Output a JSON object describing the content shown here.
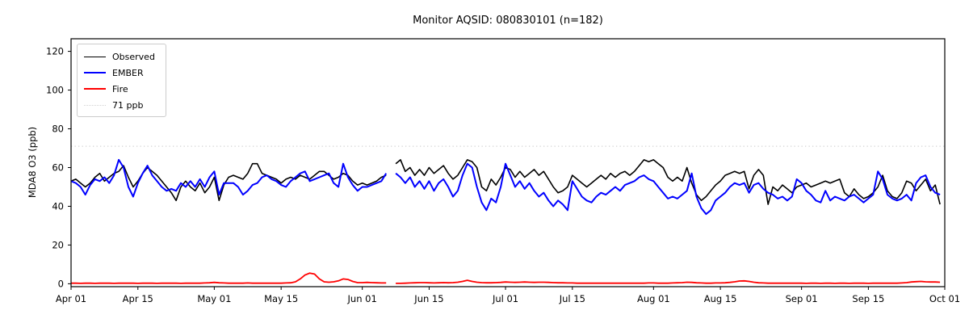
{
  "title": "Monitor AQSID: 080830101 (n=182)",
  "chart_data": {
    "type": "line",
    "title": "Monitor AQSID: 080830101 (n=182)",
    "xlabel": "",
    "ylabel": "MDA8 O3 (ppb)",
    "ylim": [
      -1.5,
      126.5
    ],
    "yticks": [
      0,
      20,
      40,
      60,
      80,
      100,
      120
    ],
    "x_range_days": [
      0,
      183
    ],
    "x_start_date": "Apr 01",
    "x_end_date": "Oct 01",
    "xticks": [
      {
        "day": 0,
        "label": "Apr 01"
      },
      {
        "day": 14,
        "label": "Apr 15"
      },
      {
        "day": 30,
        "label": "May 01"
      },
      {
        "day": 44,
        "label": "May 15"
      },
      {
        "day": 61,
        "label": "Jun 01"
      },
      {
        "day": 75,
        "label": "Jun 15"
      },
      {
        "day": 91,
        "label": "Jul 01"
      },
      {
        "day": 105,
        "label": "Jul 15"
      },
      {
        "day": 122,
        "label": "Aug 01"
      },
      {
        "day": 136,
        "label": "Aug 15"
      },
      {
        "day": 153,
        "label": "Sep 01"
      },
      {
        "day": 167,
        "label": "Sep 15"
      },
      {
        "day": 183,
        "label": "Oct 01"
      }
    ],
    "grid": false,
    "legend_position": "upper left",
    "missing_day_index": 67,
    "n_points": 182,
    "threshold": {
      "value": 71,
      "label": "71 ppb",
      "color": "#d3d3d3",
      "style": "dotted"
    },
    "colors": {
      "observed": "#000000",
      "ember": "#0000ff",
      "fire": "#ff0000",
      "axis": "#000000"
    },
    "series": [
      {
        "name": "Observed",
        "color": "#000000",
        "values": [
          53,
          54,
          52,
          50,
          52,
          55,
          57,
          53,
          55,
          57,
          58,
          61,
          55,
          50,
          53,
          57,
          60,
          58,
          56,
          53,
          50,
          47,
          43,
          50,
          53,
          50,
          48,
          52,
          47,
          50,
          55,
          43,
          51,
          55,
          56,
          55,
          54,
          57,
          62,
          62,
          57,
          56,
          55,
          54,
          52,
          54,
          55,
          54,
          56,
          55,
          54,
          56,
          58,
          58,
          56,
          54,
          55,
          57,
          56,
          53,
          51,
          52,
          51,
          52,
          53,
          55,
          56,
          null,
          62,
          64,
          58,
          60,
          56,
          59,
          56,
          60,
          57,
          59,
          61,
          57,
          54,
          56,
          60,
          64,
          63,
          60,
          50,
          48,
          54,
          51,
          55,
          60,
          59,
          55,
          58,
          55,
          57,
          59,
          56,
          58,
          54,
          50,
          47,
          48,
          50,
          56,
          54,
          52,
          50,
          52,
          54,
          56,
          54,
          57,
          55,
          57,
          58,
          56,
          58,
          61,
          64,
          63,
          64,
          62,
          60,
          55,
          53,
          55,
          53,
          60,
          52,
          46,
          43,
          45,
          48,
          51,
          53,
          56,
          57,
          58,
          57,
          58,
          49,
          56,
          59,
          56,
          41,
          50,
          48,
          51,
          49,
          47,
          50,
          51,
          52,
          50,
          51,
          52,
          53,
          52,
          53,
          54,
          47,
          45,
          49,
          46,
          44,
          45,
          47,
          50,
          56,
          48,
          45,
          44,
          47,
          53,
          52,
          48,
          51,
          54,
          48,
          51,
          41
        ]
      },
      {
        "name": "EMBER",
        "color": "#0000ff",
        "values": [
          53,
          52,
          50,
          46,
          51,
          54,
          53,
          55,
          52,
          56,
          64,
          60,
          50,
          45,
          52,
          57,
          61,
          56,
          53,
          50,
          48,
          49,
          48,
          52,
          50,
          53,
          50,
          54,
          50,
          55,
          58,
          46,
          52,
          52,
          52,
          50,
          46,
          48,
          51,
          52,
          55,
          56,
          54,
          53,
          51,
          50,
          53,
          55,
          57,
          58,
          53,
          54,
          55,
          56,
          57,
          52,
          50,
          62,
          55,
          51,
          48,
          50,
          50,
          51,
          52,
          53,
          57,
          null,
          57,
          55,
          52,
          55,
          50,
          53,
          49,
          53,
          48,
          52,
          54,
          50,
          45,
          48,
          56,
          62,
          60,
          50,
          42,
          38,
          44,
          42,
          50,
          62,
          56,
          50,
          53,
          49,
          52,
          48,
          45,
          47,
          43,
          40,
          43,
          41,
          38,
          53,
          49,
          45,
          43,
          42,
          45,
          47,
          46,
          48,
          50,
          48,
          51,
          52,
          53,
          55,
          56,
          54,
          53,
          50,
          47,
          44,
          45,
          44,
          46,
          48,
          57,
          45,
          39,
          36,
          38,
          43,
          45,
          47,
          50,
          52,
          51,
          52,
          47,
          51,
          52,
          49,
          47,
          46,
          44,
          45,
          43,
          45,
          54,
          52,
          48,
          46,
          43,
          42,
          48,
          43,
          45,
          44,
          43,
          45,
          46,
          44,
          42,
          44,
          46,
          58,
          54,
          46,
          44,
          43,
          44,
          46,
          43,
          52,
          55,
          56,
          50,
          47,
          46
        ]
      },
      {
        "name": "Fire",
        "color": "#ff0000",
        "values": [
          0.3,
          0.3,
          0.2,
          0.3,
          0.3,
          0.2,
          0.3,
          0.3,
          0.3,
          0.2,
          0.3,
          0.3,
          0.3,
          0.3,
          0.2,
          0.3,
          0.3,
          0.3,
          0.2,
          0.3,
          0.3,
          0.3,
          0.3,
          0.2,
          0.3,
          0.3,
          0.3,
          0.3,
          0.4,
          0.5,
          0.7,
          0.5,
          0.4,
          0.3,
          0.3,
          0.3,
          0.3,
          0.4,
          0.3,
          0.3,
          0.3,
          0.3,
          0.3,
          0.3,
          0.3,
          0.4,
          0.5,
          1.0,
          2.5,
          4.5,
          5.5,
          5.0,
          2.5,
          1.0,
          0.8,
          1.0,
          1.5,
          2.5,
          2.2,
          1.2,
          0.6,
          0.6,
          0.7,
          0.6,
          0.5,
          0.4,
          0.4,
          null,
          0.2,
          0.2,
          0.3,
          0.4,
          0.5,
          0.6,
          0.6,
          0.5,
          0.4,
          0.5,
          0.6,
          0.5,
          0.6,
          0.8,
          1.2,
          1.8,
          1.2,
          0.8,
          0.6,
          0.5,
          0.5,
          0.6,
          0.7,
          0.9,
          0.8,
          0.7,
          0.8,
          0.9,
          0.8,
          0.7,
          0.8,
          0.8,
          0.7,
          0.6,
          0.5,
          0.5,
          0.4,
          0.4,
          0.3,
          0.3,
          0.3,
          0.3,
          0.3,
          0.3,
          0.3,
          0.3,
          0.3,
          0.3,
          0.3,
          0.3,
          0.3,
          0.3,
          0.3,
          0.4,
          0.4,
          0.3,
          0.3,
          0.3,
          0.4,
          0.5,
          0.6,
          0.8,
          0.7,
          0.5,
          0.4,
          0.3,
          0.3,
          0.4,
          0.4,
          0.5,
          0.7,
          1.0,
          1.4,
          1.5,
          1.2,
          0.8,
          0.5,
          0.4,
          0.3,
          0.3,
          0.3,
          0.3,
          0.3,
          0.3,
          0.3,
          0.3,
          0.2,
          0.3,
          0.3,
          0.2,
          0.3,
          0.3,
          0.2,
          0.3,
          0.3,
          0.2,
          0.3,
          0.3,
          0.3,
          0.2,
          0.3,
          0.3,
          0.3,
          0.3,
          0.3,
          0.3,
          0.4,
          0.6,
          0.9,
          1.1,
          1.2,
          1.0,
          0.9,
          0.9,
          0.8
        ]
      }
    ],
    "legend": [
      "Observed",
      "EMBER",
      "Fire",
      "71 ppb"
    ]
  }
}
